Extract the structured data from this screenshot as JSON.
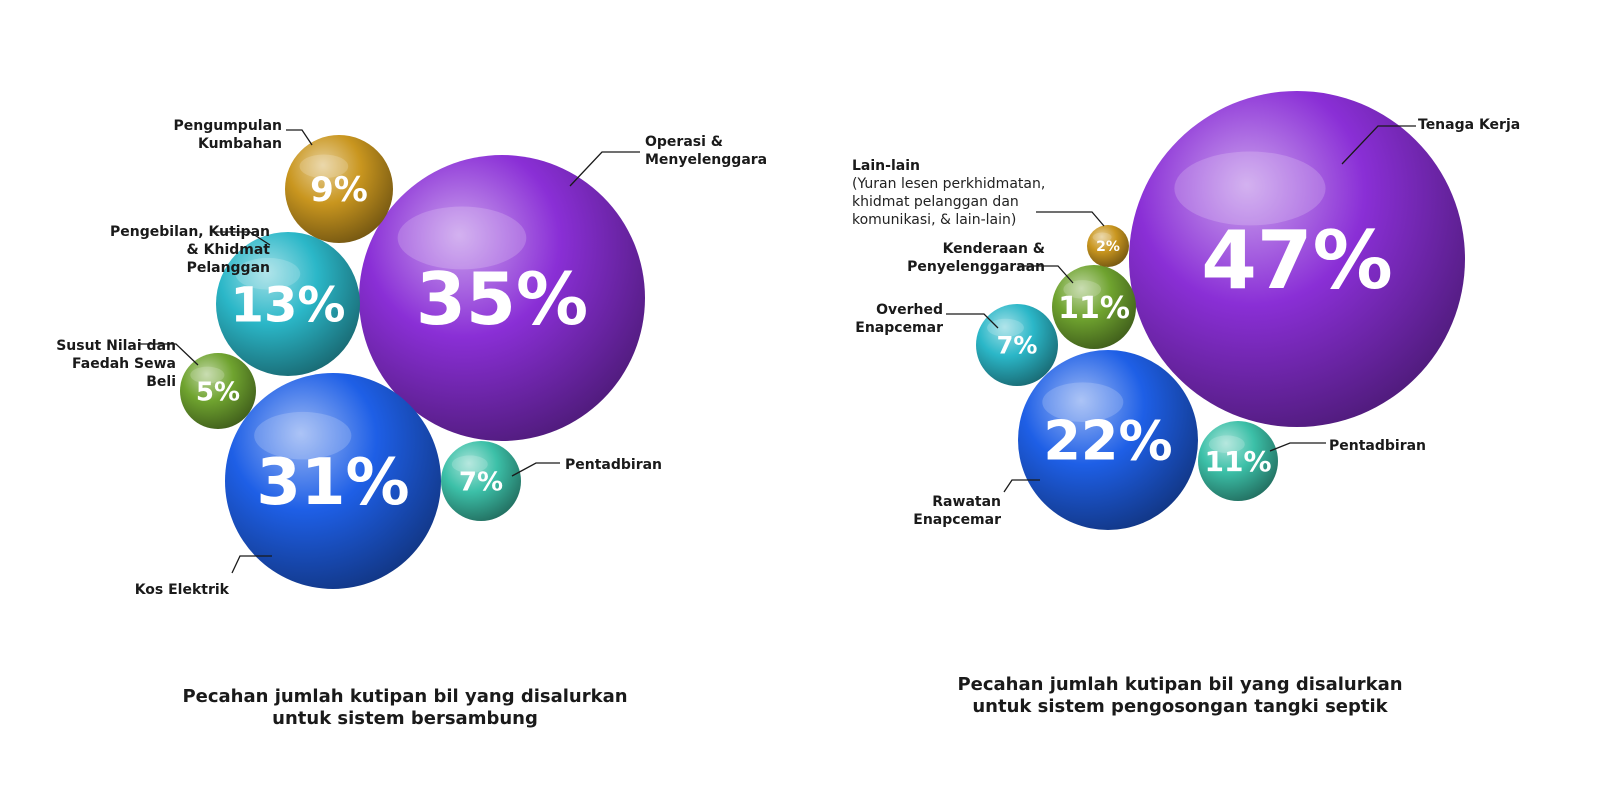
{
  "colors": {
    "purple": "#8a2fd6",
    "blue": "#1e5fe6",
    "teal": "#2bb7c8",
    "gold": "#c9961f",
    "green": "#6fa32f",
    "mint": "#3cc0a8"
  },
  "chart_data": [
    {
      "type": "bubble",
      "title": "",
      "caption_lines": [
        "Pecahan jumlah kutipan bil yang disalurkan",
        "untuk sistem bersambung"
      ],
      "unit": "%",
      "series": [
        {
          "label_lines": [
            "Operasi &",
            "Menyelenggara"
          ],
          "value": 35,
          "display": "35%",
          "color": "purple"
        },
        {
          "label_lines": [
            "Kos Elektrik"
          ],
          "value": 31,
          "display": "31%",
          "color": "blue"
        },
        {
          "label_lines": [
            "Pengebilan, Kutipan",
            "& Khidmat",
            "Pelanggan"
          ],
          "value": 13,
          "display": "13%",
          "color": "teal"
        },
        {
          "label_lines": [
            "Pengumpulan",
            "Kumbahan"
          ],
          "value": 9,
          "display": "9%",
          "color": "gold"
        },
        {
          "label_lines": [
            "Pentadbiran"
          ],
          "value": 7,
          "display": "7%",
          "color": "mint"
        },
        {
          "label_lines": [
            "Susut Nilai dan",
            "Faedah Sewa",
            "Beli"
          ],
          "value": 5,
          "display": "5%",
          "color": "green"
        }
      ]
    },
    {
      "type": "bubble",
      "title": "",
      "caption_lines": [
        "Pecahan jumlah kutipan bil yang disalurkan",
        "untuk sistem pengosongan tangki septik"
      ],
      "unit": "%",
      "series": [
        {
          "label_lines": [
            "Tenaga Kerja"
          ],
          "value": 47,
          "display": "47%",
          "color": "purple"
        },
        {
          "label_lines": [
            "Rawatan",
            "Enapcemar"
          ],
          "value": 22,
          "display": "22%",
          "color": "blue"
        },
        {
          "label_lines": [
            "Kenderaan &",
            "Penyelenggaraan"
          ],
          "value": 11,
          "display": "11%",
          "color": "green"
        },
        {
          "label_lines": [
            "Pentadbiran"
          ],
          "value": 11,
          "display": "11%",
          "color": "mint"
        },
        {
          "label_lines": [
            "Overhed",
            "Enapcemar"
          ],
          "value": 7,
          "display": "7%",
          "color": "teal"
        },
        {
          "label_lines": [
            "Lain-lain"
          ],
          "sub_lines": [
            "(Yuran lesen perkhidmatan,",
            "khidmat pelanggan dan",
            "komunikasi, & lain-lain)"
          ],
          "value": 2,
          "display": "2%",
          "color": "gold"
        }
      ]
    }
  ]
}
